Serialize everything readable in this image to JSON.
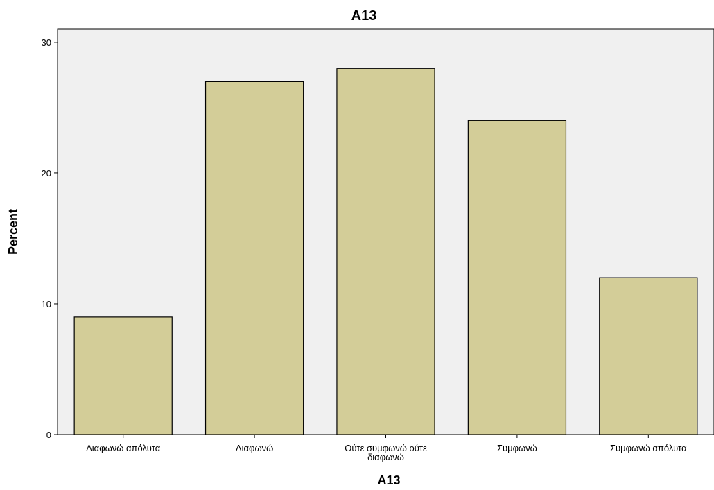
{
  "chart_data": {
    "type": "bar",
    "title": "A13",
    "xlabel": "A13",
    "ylabel": "Percent",
    "categories": [
      [
        "Διαφωνώ απόλυτα"
      ],
      [
        "Διαφωνώ"
      ],
      [
        "Ούτε συμφωνώ ούτε",
        "διαφωνώ"
      ],
      [
        "Συμφωνώ"
      ],
      [
        "Συμφωνώ απόλυτα"
      ]
    ],
    "values": [
      9,
      27,
      28,
      24,
      12
    ],
    "ylim": [
      0,
      31
    ],
    "yticks": [
      0,
      10,
      20,
      30
    ],
    "grid": false,
    "colors": {
      "bar": "#d3cd98",
      "plot_background": "#f0f0f0"
    }
  }
}
